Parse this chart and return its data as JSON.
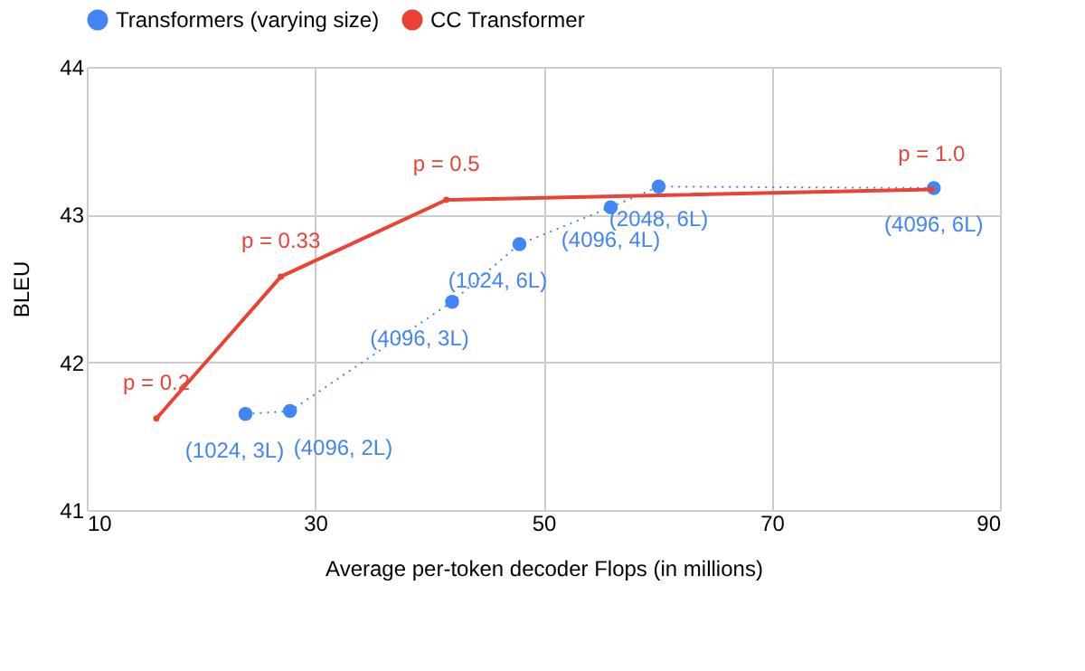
{
  "chart_data": {
    "type": "line",
    "xlabel": "Average per-token decoder Flops (in millions)",
    "ylabel": "BLEU",
    "xlim": [
      10,
      90
    ],
    "xticks": [
      10,
      30,
      50,
      70,
      90
    ],
    "ylim": [
      41,
      44
    ],
    "yticks": [
      41,
      42,
      43,
      44
    ],
    "grid": true,
    "legend": "top",
    "series": [
      {
        "name": "Transformers (varying size)",
        "color": "#4285f4",
        "x": [
          23.9,
          27.8,
          42.0,
          47.9,
          55.9,
          60.1,
          84.2
        ],
        "values": [
          41.65,
          41.67,
          42.41,
          42.8,
          43.05,
          43.19,
          43.18
        ],
        "marker": "circle",
        "line_style": "dotted"
      },
      {
        "name": "CC Transformer",
        "color": "#ea4335",
        "x": [
          16.1,
          27.0,
          41.5,
          84.0
        ],
        "values": [
          41.62,
          42.58,
          43.1,
          43.17
        ],
        "marker": "circle",
        "line_style": "solid"
      }
    ],
    "annotations": [
      {
        "text": "(1024, 3L)",
        "x": 23.9,
        "y": 41.65
      },
      {
        "text": "(4096, 2L)",
        "x": 27.8,
        "y": 41.67
      },
      {
        "text": "(4096, 3L)",
        "x": 42.0,
        "y": 42.41
      },
      {
        "text": "(1024, 6L)",
        "x": 47.9,
        "y": 42.8
      },
      {
        "text": "(4096, 4L)",
        "x": 55.9,
        "y": 43.05
      },
      {
        "text": "(2048, 6L)",
        "x": 60.1,
        "y": 43.19
      },
      {
        "text": "(4096, 6L)",
        "x": 84.2,
        "y": 43.18
      },
      {
        "text": "p = 0.2",
        "x": 16.1,
        "y": 41.62
      },
      {
        "text": "p = 0.33",
        "x": 27.0,
        "y": 42.58
      },
      {
        "text": "p = 0.5",
        "x": 41.5,
        "y": 43.1
      },
      {
        "text": "p = 1.0",
        "x": 84.0,
        "y": 43.17
      }
    ]
  }
}
